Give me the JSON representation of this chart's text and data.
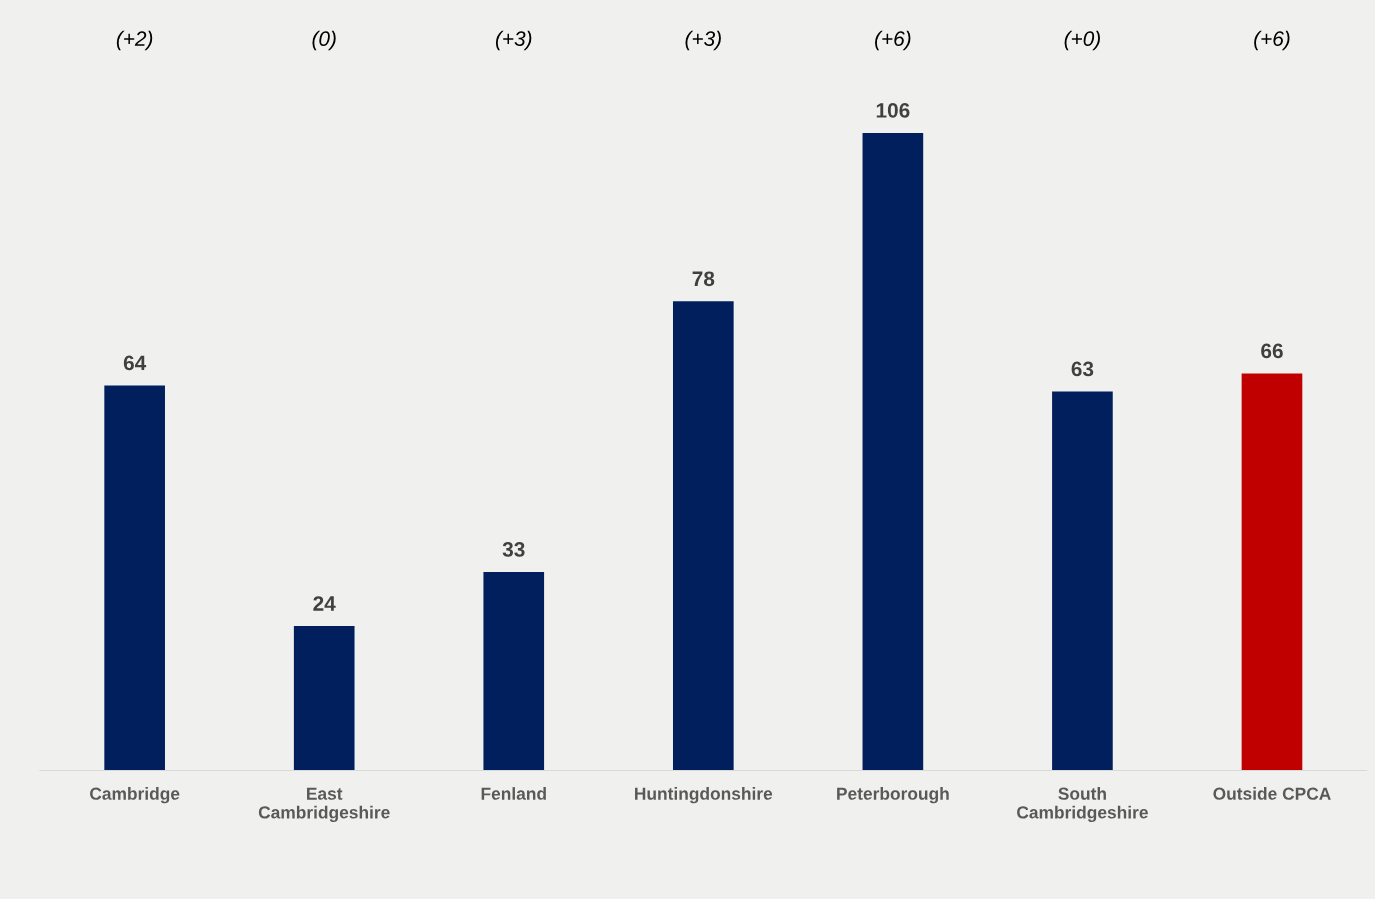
{
  "chart_data": {
    "type": "bar",
    "categories": [
      "Cambridge",
      "East Cambridgeshire",
      "Fenland",
      "Huntingdonshire",
      "Peterborough",
      "South Cambridgeshire",
      "Outside CPCA"
    ],
    "values": [
      64,
      24,
      33,
      78,
      106,
      63,
      66
    ],
    "colors": [
      "#001f5c",
      "#001f5c",
      "#001f5c",
      "#001f5c",
      "#001f5c",
      "#001f5c",
      "#c00000"
    ],
    "data_labels": true,
    "annotations": [
      "(+2)",
      "(0)",
      "(+3)",
      "(+3)",
      "(+6)",
      "(+0)",
      "(+6)"
    ],
    "grid": false,
    "legend": false,
    "tick_labels": "x"
  }
}
